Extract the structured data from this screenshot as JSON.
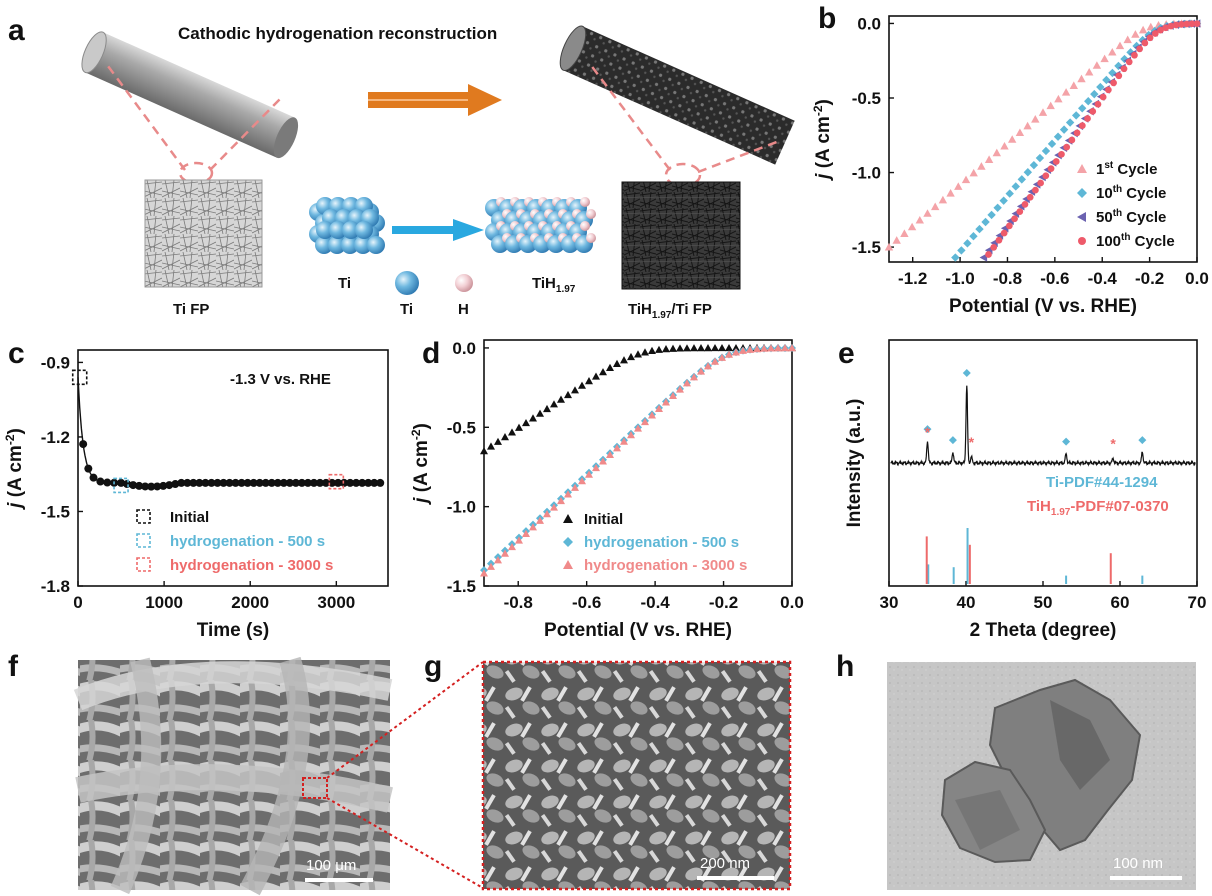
{
  "panel_labels": {
    "a": "a",
    "b": "b",
    "c": "c",
    "d": "d",
    "e": "e",
    "f": "f",
    "g": "g",
    "h": "h"
  },
  "schematic": {
    "title": "Cathodic hydrogenation reconstruction",
    "ti_fp_label": "Ti FP",
    "ti_cluster_label": "Ti",
    "tih_cluster_label": "TiH",
    "tih_cluster_sub": "1.97",
    "legend_ti": "Ti",
    "legend_h": "H",
    "product_label_a": "TiH",
    "product_label_sub": "1.97",
    "product_label_b": "/Ti FP",
    "colors": {
      "orange_arrow": "#e07a1f",
      "blue_arrow": "#29a8e0",
      "ti_atom": "#5aa9d8",
      "h_atom": "#e8b9c0",
      "dashed": "#e88a8a"
    }
  },
  "micrographs": {
    "f_scale": "100 μm",
    "g_scale": "200 nm",
    "h_scale": "100 nm"
  },
  "chart_data": [
    {
      "panel": "b",
      "type": "scatter",
      "xlabel": "Potential (V vs. RHE)",
      "ylabel_main": "j",
      "ylabel_rest": " (A cm",
      "ylabel_sup": "-2",
      "xlim": [
        -1.3,
        0.0
      ],
      "ylim": [
        -1.6,
        0.05
      ],
      "xticks": [
        "-1.2",
        "-1.0",
        "-0.8",
        "-0.6",
        "-0.4",
        "-0.2",
        "0.0"
      ],
      "yticks": [
        "0.0",
        "-0.5",
        "-1.0",
        "-1.5"
      ],
      "legend_position": "bottom-right",
      "series": [
        {
          "name": "1st Cycle",
          "label_main": "1",
          "label_sup": "st",
          "label_rest": " Cycle",
          "marker": "triangle-up",
          "color": "#f4a3a8",
          "onset": -0.22,
          "end_x": -1.3,
          "end_y": -1.5
        },
        {
          "name": "10th Cycle",
          "label_main": "10",
          "label_sup": "th",
          "label_rest": " Cycle",
          "marker": "diamond",
          "color": "#5eb7d6",
          "onset": -0.18,
          "end_x": -1.02,
          "end_y": -1.57
        },
        {
          "name": "50th Cycle",
          "label_main": "50",
          "label_sup": "th",
          "label_rest": " Cycle",
          "marker": "triangle-left",
          "color": "#6b62b0",
          "onset": -0.18,
          "end_x": -0.9,
          "end_y": -1.57
        },
        {
          "name": "100th Cycle",
          "label_main": "100",
          "label_sup": "th",
          "label_rest": " Cycle",
          "marker": "circle",
          "color": "#ee5a6a",
          "onset": -0.17,
          "end_x": -0.88,
          "end_y": -1.55
        }
      ]
    },
    {
      "panel": "c",
      "type": "scatter",
      "xlabel": "Time (s)",
      "ylabel_main": "j",
      "ylabel_rest": " (A cm",
      "ylabel_sup": "-2",
      "annotation": "-1.3 V vs. RHE",
      "xlim": [
        0,
        3600
      ],
      "ylim": [
        -1.8,
        -0.85
      ],
      "xticks": [
        "0",
        "1000",
        "2000",
        "3000"
      ],
      "yticks": [
        "-0.9",
        "-1.2",
        "-1.5",
        "-1.8"
      ],
      "series": [
        {
          "name": "data",
          "color": "#111111",
          "steady_value": -1.385
        }
      ],
      "legend": [
        {
          "label": "Initial",
          "color": "#111111",
          "mark_x": 20,
          "mark_y": -0.96
        },
        {
          "label": "hydrogenation - 500 s",
          "color": "#5eb7d6",
          "mark_x": 500,
          "mark_y": -1.395
        },
        {
          "label": "hydrogenation - 3000 s",
          "color": "#ee6a6a",
          "mark_x": 3000,
          "mark_y": -1.38
        }
      ]
    },
    {
      "panel": "d",
      "type": "scatter",
      "xlabel": "Potential (V vs. RHE)",
      "ylabel_main": "j",
      "ylabel_rest": " (A cm",
      "ylabel_sup": "-2",
      "xlim": [
        -0.9,
        0.0
      ],
      "ylim": [
        -1.5,
        0.05
      ],
      "xticks": [
        "-0.8",
        "-0.6",
        "-0.4",
        "-0.2",
        "0.0"
      ],
      "yticks": [
        "0.0",
        "-0.5",
        "-1.0",
        "-1.5"
      ],
      "series": [
        {
          "name": "Initial",
          "marker": "triangle-up",
          "color": "#111111",
          "onset": -0.45,
          "end_x": -0.9,
          "end_y": -0.65
        },
        {
          "name": "hydrogenation - 500 s",
          "marker": "diamond",
          "color": "#5eb7d6",
          "onset": -0.2,
          "end_x": -0.9,
          "end_y": -1.4
        },
        {
          "name": "hydrogenation - 3000 s",
          "marker": "triangle-up",
          "color": "#f08a8a",
          "onset": -0.2,
          "end_x": -0.9,
          "end_y": -1.42
        }
      ]
    },
    {
      "panel": "e",
      "type": "line",
      "xlabel": "2 Theta (degree)",
      "ylabel": "Intensity (a.u.)",
      "xlim": [
        30,
        70
      ],
      "xticks": [
        "30",
        "40",
        "50",
        "60",
        "70"
      ],
      "pattern_peaks": [
        {
          "x": 35.0,
          "h": 0.28
        },
        {
          "x": 38.3,
          "h": 0.14
        },
        {
          "x": 40.1,
          "h": 1.0
        },
        {
          "x": 40.7,
          "h": 0.08
        },
        {
          "x": 53.0,
          "h": 0.12
        },
        {
          "x": 59.1,
          "h": 0.06
        },
        {
          "x": 62.9,
          "h": 0.14
        }
      ],
      "diamond_marks": [
        35.0,
        38.3,
        40.1,
        53.0,
        62.9
      ],
      "star_marks": [
        35.0,
        40.7,
        59.1
      ],
      "reference_lines": [
        {
          "name": "Ti-PDF#44-1294",
          "color": "#5eb7d6",
          "peaks": [
            {
              "x": 35.1,
              "h": 0.35
            },
            {
              "x": 38.4,
              "h": 0.3
            },
            {
              "x": 40.2,
              "h": 1.0
            },
            {
              "x": 53.0,
              "h": 0.15
            },
            {
              "x": 62.9,
              "h": 0.15
            }
          ]
        },
        {
          "name": "TiH1.97-PDF#07-0370",
          "color": "#ee6a6a",
          "peaks": [
            {
              "x": 34.9,
              "h": 0.85
            },
            {
              "x": 40.5,
              "h": 0.7
            },
            {
              "x": 58.8,
              "h": 0.55
            }
          ]
        }
      ],
      "legend": [
        {
          "main": "Ti-PDF#44-1294",
          "sub": "",
          "rest": "",
          "color": "#5eb7d6"
        },
        {
          "main": "TiH",
          "sub": "1.97",
          "rest": "-PDF#07-0370",
          "color": "#ee6a6a"
        }
      ]
    }
  ]
}
